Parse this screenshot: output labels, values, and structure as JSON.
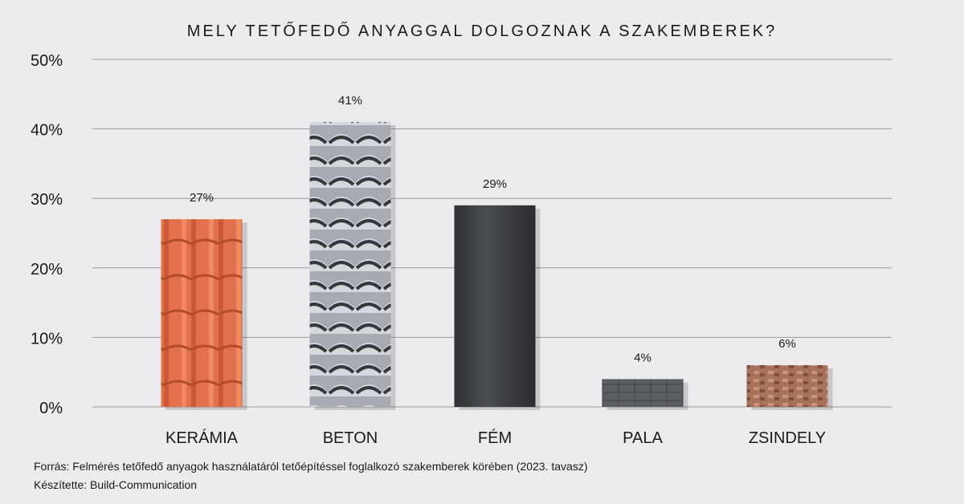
{
  "chart_data": {
    "type": "bar",
    "title": "MELY TETŐFEDŐ ANYAGGAL DOLGOZNAK A SZAKEMBEREK?",
    "categories": [
      "KERÁMIA",
      "BETON",
      "FÉM",
      "PALA",
      "ZSINDELY"
    ],
    "values": [
      27,
      41,
      29,
      4,
      6
    ],
    "data_labels": [
      "27%",
      "41%",
      "29%",
      "4%",
      "6%"
    ],
    "bar_textures": [
      "terracotta-tile",
      "grey-concrete-tile",
      "dark-metal-sheet",
      "slate",
      "brown-shingle"
    ],
    "bar_colors": [
      "#e0714f",
      "#9ea2a8",
      "#3f4246",
      "#55595e",
      "#a8715a"
    ],
    "ylim": [
      0,
      50
    ],
    "yticks": [
      0,
      10,
      20,
      30,
      40,
      50
    ],
    "ytick_labels": [
      "0%",
      "10%",
      "20%",
      "30%",
      "40%",
      "50%"
    ],
    "grid": true,
    "xlabel": "",
    "ylabel": ""
  },
  "footer": {
    "source": "Forrás: Felmérés tetőfedő anyagok használatáról tetőépítéssel foglalkozó szakemberek körében (2023. tavasz)",
    "credit": "Készítette: Build-Communication"
  }
}
